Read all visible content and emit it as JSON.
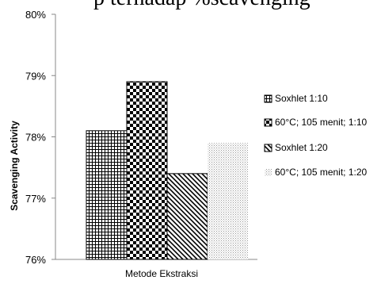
{
  "top_text": "p terhadap %scavenging",
  "chart_data": {
    "type": "bar",
    "categories": [
      "Metode Ekstraksi"
    ],
    "series": [
      {
        "name": "Soxhlet 1:10",
        "values": [
          78.1
        ],
        "pattern": "grid"
      },
      {
        "name": "60°C; 105 menit; 1:10",
        "values": [
          78.9
        ],
        "pattern": "checker"
      },
      {
        "name": "Soxhlet 1:20",
        "values": [
          77.4
        ],
        "pattern": "diagonal"
      },
      {
        "name": "60°C; 105 menit; 1:20",
        "values": [
          77.9
        ],
        "pattern": "dots"
      }
    ],
    "title": "",
    "xlabel": "Metode Ekstraksi",
    "ylabel": "Scavenging Activity",
    "ylim": [
      76,
      80
    ],
    "yticks": [
      {
        "value": 76,
        "label": "76%"
      },
      {
        "value": 77,
        "label": "77%"
      },
      {
        "value": 78,
        "label": "78%"
      },
      {
        "value": 79,
        "label": "79%"
      },
      {
        "value": 80,
        "label": "80%"
      }
    ],
    "grid": false,
    "legend": "right"
  }
}
